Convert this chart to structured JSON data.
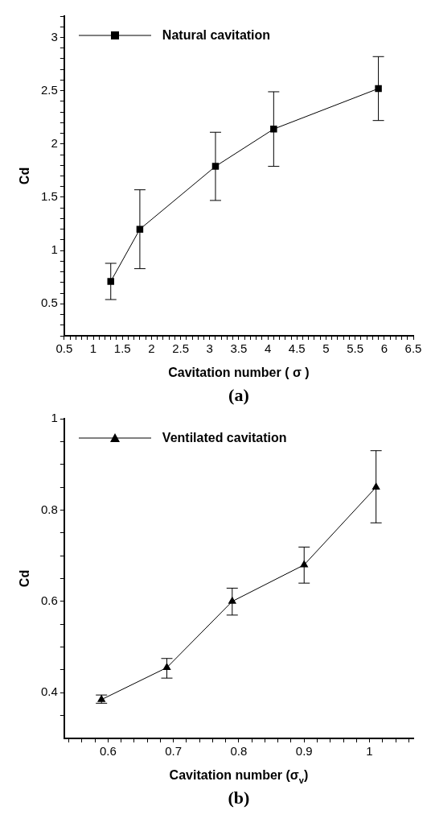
{
  "chart_data": [
    {
      "type": "line",
      "title": "(a)",
      "xlabel": "Cavitation number ( σ )",
      "ylabel": "Cd",
      "legend": "top left",
      "marker": "square",
      "line_style": "solid",
      "grid": false,
      "x": [
        1.3,
        1.8,
        3.1,
        4.1,
        5.9
      ],
      "series": [
        {
          "name": "Natural cavitation",
          "color": "#000000",
          "values": [
            0.71,
            1.2,
            1.79,
            2.14,
            2.52
          ],
          "errors": [
            [
              0.54,
              0.88
            ],
            [
              0.83,
              1.57
            ],
            [
              1.47,
              2.11
            ],
            [
              1.79,
              2.49
            ],
            [
              2.22,
              2.82
            ]
          ]
        }
      ],
      "xlim": [
        0.5,
        6.5
      ],
      "ylim": [
        0.2,
        3.2
      ],
      "xticks": [
        0.5,
        {
          "value": 0.6,
          "label": null
        },
        {
          "value": 0.7,
          "label": null
        },
        {
          "value": 0.8,
          "label": null
        },
        {
          "value": 0.9,
          "label": null
        },
        1,
        {
          "value": 1.1,
          "label": null
        },
        {
          "value": 1.2,
          "label": null
        },
        {
          "value": 1.3,
          "label": null
        },
        {
          "value": 1.4,
          "label": null
        },
        1.5,
        {
          "value": 1.6,
          "label": null
        },
        {
          "value": 1.7,
          "label": null
        },
        {
          "value": 1.8,
          "label": null
        },
        {
          "value": 1.9,
          "label": null
        },
        2,
        {
          "value": 2.1,
          "label": null
        },
        {
          "value": 2.2,
          "label": null
        },
        {
          "value": 2.3,
          "label": null
        },
        {
          "value": 2.4,
          "label": null
        },
        2.5,
        {
          "value": 2.6,
          "label": null
        },
        {
          "value": 2.7,
          "label": null
        },
        {
          "value": 2.8,
          "label": null
        },
        {
          "value": 2.9,
          "label": null
        },
        3,
        {
          "value": 3.1,
          "label": null
        },
        {
          "value": 3.2,
          "label": null
        },
        {
          "value": 3.3,
          "label": null
        },
        {
          "value": 3.4,
          "label": null
        },
        3.5,
        {
          "value": 3.6,
          "label": null
        },
        {
          "value": 3.7,
          "label": null
        },
        {
          "value": 3.8,
          "label": null
        },
        {
          "value": 3.9,
          "label": null
        },
        4,
        {
          "value": 4.1,
          "label": null
        },
        {
          "value": 4.2,
          "label": null
        },
        {
          "value": 4.3,
          "label": null
        },
        {
          "value": 4.4,
          "label": null
        },
        4.5,
        {
          "value": 4.6,
          "label": null
        },
        {
          "value": 4.7,
          "label": null
        },
        {
          "value": 4.8,
          "label": null
        },
        {
          "value": 4.9,
          "label": null
        },
        5,
        {
          "value": 5.1,
          "label": null
        },
        {
          "value": 5.2,
          "label": null
        },
        {
          "value": 5.3,
          "label": null
        },
        {
          "value": 5.4,
          "label": null
        },
        5.5,
        {
          "value": 5.6,
          "label": null
        },
        {
          "value": 5.7,
          "label": null
        },
        {
          "value": 5.8,
          "label": null
        },
        {
          "value": 5.9,
          "label": null
        },
        6,
        {
          "value": 6.1,
          "label": null
        },
        {
          "value": 6.2,
          "label": null
        },
        {
          "value": 6.3,
          "label": null
        },
        {
          "value": 6.4,
          "label": null
        },
        6.5
      ],
      "yticks": [
        {
          "value": 0.2,
          "label": null
        },
        {
          "value": 0.3,
          "label": null
        },
        {
          "value": 0.4,
          "label": null
        },
        0.5,
        {
          "value": 0.6,
          "label": null
        },
        {
          "value": 0.7,
          "label": null
        },
        {
          "value": 0.8,
          "label": null
        },
        {
          "value": 0.9,
          "label": null
        },
        1,
        {
          "value": 1.1,
          "label": null
        },
        {
          "value": 1.2,
          "label": null
        },
        {
          "value": 1.3,
          "label": null
        },
        {
          "value": 1.4,
          "label": null
        },
        1.5,
        {
          "value": 1.6,
          "label": null
        },
        {
          "value": 1.7,
          "label": null
        },
        {
          "value": 1.8,
          "label": null
        },
        {
          "value": 1.9,
          "label": null
        },
        2,
        {
          "value": 2.1,
          "label": null
        },
        {
          "value": 2.2,
          "label": null
        },
        {
          "value": 2.3,
          "label": null
        },
        {
          "value": 2.4,
          "label": null
        },
        2.5,
        {
          "value": 2.6,
          "label": null
        },
        {
          "value": 2.7,
          "label": null
        },
        {
          "value": 2.8,
          "label": null
        },
        {
          "value": 2.9,
          "label": null
        },
        3,
        {
          "value": 3.1,
          "label": null
        },
        {
          "value": 3.2,
          "label": null
        }
      ]
    },
    {
      "type": "line",
      "title": "(b)",
      "xlabel": "Cavitation number (σ$_{v}$)",
      "ylabel": "Cd",
      "legend": "top left",
      "marker": "triangle",
      "line_style": "solid",
      "grid": false,
      "x": [
        0.59,
        0.69,
        0.79,
        0.9,
        1.01
      ],
      "series": [
        {
          "name": "Ventilated cavitation",
          "color": "#000000",
          "values": [
            0.385,
            0.455,
            0.6,
            0.68,
            0.85
          ],
          "errors": [
            [
              0.377,
              0.395
            ],
            [
              0.432,
              0.475
            ],
            [
              0.57,
              0.629
            ],
            [
              0.64,
              0.719
            ],
            [
              0.772,
              0.93
            ]
          ]
        }
      ],
      "xlim": [
        0.533,
        1.067
      ],
      "ylim": [
        0.3,
        1
      ],
      "xticks": [
        {
          "value": 0.54,
          "label": null
        },
        {
          "value": 0.56,
          "label": null
        },
        {
          "value": 0.58,
          "label": null
        },
        0.6,
        {
          "value": 0.62,
          "label": null
        },
        {
          "value": 0.64,
          "label": null
        },
        {
          "value": 0.66,
          "label": null
        },
        {
          "value": 0.68,
          "label": null
        },
        0.7,
        {
          "value": 0.72,
          "label": null
        },
        {
          "value": 0.74,
          "label": null
        },
        {
          "value": 0.76,
          "label": null
        },
        {
          "value": 0.78,
          "label": null
        },
        0.8,
        {
          "value": 0.82,
          "label": null
        },
        {
          "value": 0.84,
          "label": null
        },
        {
          "value": 0.86,
          "label": null
        },
        {
          "value": 0.88,
          "label": null
        },
        0.9,
        {
          "value": 0.92,
          "label": null
        },
        {
          "value": 0.94,
          "label": null
        },
        {
          "value": 0.96,
          "label": null
        },
        {
          "value": 0.98,
          "label": null
        },
        1,
        {
          "value": 1.02,
          "label": null
        },
        {
          "value": 1.04,
          "label": null
        },
        {
          "value": 1.06,
          "label": null
        }
      ],
      "yticks": [
        {
          "value": 0.35,
          "label": null
        },
        0.4,
        {
          "value": 0.45,
          "label": null
        },
        {
          "value": 0.5,
          "label": null
        },
        {
          "value": 0.55,
          "label": null
        },
        0.6,
        {
          "value": 0.65,
          "label": null
        },
        {
          "value": 0.7,
          "label": null
        },
        {
          "value": 0.75,
          "label": null
        },
        0.8,
        {
          "value": 0.85,
          "label": null
        },
        {
          "value": 0.9,
          "label": null
        },
        {
          "value": 0.95,
          "label": null
        },
        1
      ]
    }
  ]
}
